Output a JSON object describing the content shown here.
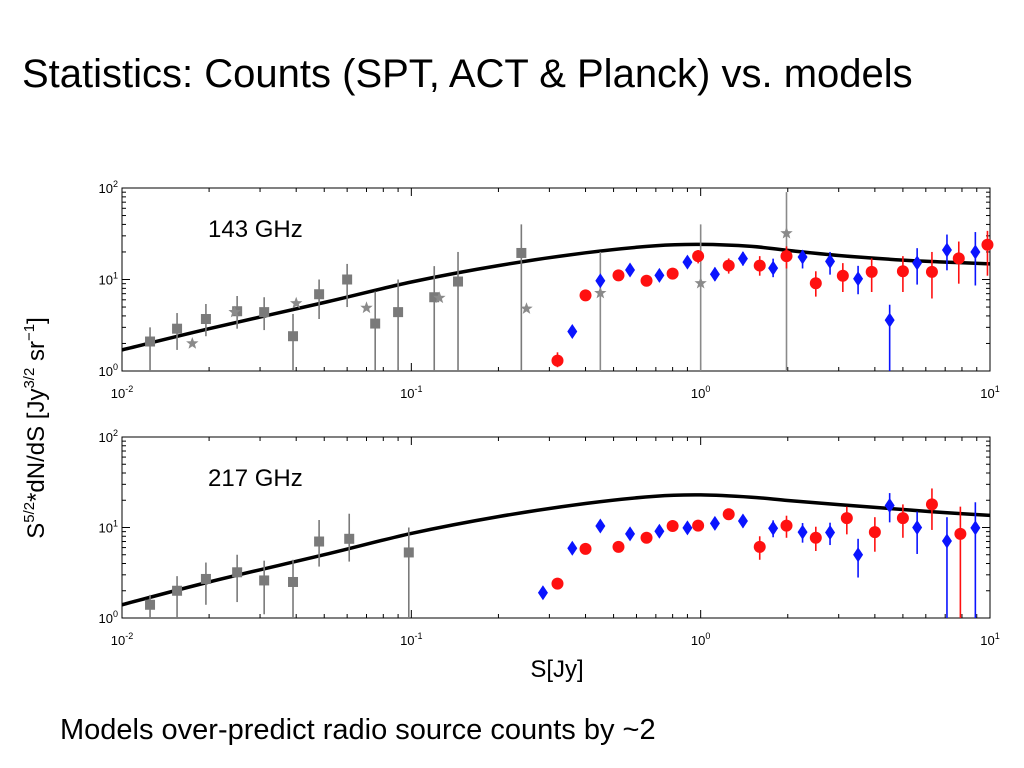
{
  "slide": {
    "title": "Statistics: Counts (SPT, ACT & Planck) vs. models",
    "caption": "Models over-predict radio source counts by ~2"
  },
  "chart_data": {
    "type": "scatter",
    "xscale": "log",
    "yscale": "log",
    "xlabel": "S[Jy]",
    "ylabel": "S5/2*dN/dS [Jy3/2 sr-1]",
    "xlim": [
      0.01,
      10
    ],
    "ylim": [
      1,
      100
    ],
    "x_ticks": [
      {
        "base": "10",
        "exp": "-2"
      },
      {
        "base": "10",
        "exp": "-1"
      },
      {
        "base": "10",
        "exp": "0"
      },
      {
        "base": "10",
        "exp": "1"
      }
    ],
    "y_ticks": [
      {
        "base": "10",
        "exp": "0"
      },
      {
        "base": "10",
        "exp": "1"
      },
      {
        "base": "10",
        "exp": "2"
      }
    ],
    "colors": {
      "gray_square": "#7a7a7a",
      "gray_star": "#8a8a8a",
      "red_circle": "#ff1010",
      "blue_diamond": "#0a14ff",
      "model": "#000000"
    },
    "panels": [
      {
        "label": "143 GHz",
        "model": {
          "x": [
            0.01,
            0.02,
            0.05,
            0.1,
            0.2,
            0.4,
            0.7,
            1.0,
            1.5,
            2.0,
            3.0,
            5.0,
            7.0,
            10.0
          ],
          "y": [
            1.7,
            2.9,
            5.6,
            9.4,
            14.2,
            19.6,
            23.4,
            24.2,
            23.0,
            20.8,
            18.3,
            16.3,
            15.5,
            14.8
          ]
        },
        "series": [
          {
            "marker": "square",
            "color": "gray_square",
            "x": [
              0.0125,
              0.0155,
              0.0195,
              0.025,
              0.031,
              0.039,
              0.048,
              0.06,
              0.075,
              0.09,
              0.12,
              0.145,
              0.24
            ],
            "y": [
              2.1,
              2.9,
              3.7,
              4.5,
              4.4,
              2.4,
              6.9,
              10,
              3.3,
              4.4,
              6.4,
              9.5,
              19.5
            ],
            "ylo": [
              1,
              1.7,
              2.4,
              2.9,
              2.8,
              1,
              3.7,
              5,
              1,
              1,
              1,
              1,
              1
            ],
            "yhi": [
              3,
              4.3,
              5.4,
              6.6,
              6.4,
              4.2,
              10,
              14.8,
              7.4,
              10,
              14,
              20,
              40
            ]
          },
          {
            "marker": "star",
            "color": "gray_star",
            "x": [
              0.0175,
              0.0245,
              0.04,
              0.07,
              0.125,
              0.25,
              0.45,
              1.0,
              1.98
            ],
            "y": [
              2.0,
              4.4,
              5.5,
              4.9,
              6.3,
              4.8,
              7.1,
              9.1,
              32
            ],
            "ylo": [
              2.0,
              4.4,
              5.5,
              4.9,
              6.3,
              4.8,
              1,
              1,
              1
            ],
            "yhi": [
              2.0,
              4.4,
              5.5,
              4.9,
              6.3,
              4.8,
              20,
              40,
              90
            ]
          },
          {
            "marker": "circle",
            "color": "red_circle",
            "x": [
              0.32,
              0.4,
              0.52,
              0.65,
              0.8,
              0.98,
              1.25,
              1.6,
              1.98,
              2.5,
              3.1,
              3.9,
              5.0,
              6.3,
              7.8,
              9.8
            ],
            "y": [
              1.3,
              6.7,
              11.1,
              9.7,
              11.6,
              18,
              14.2,
              14.2,
              18,
              9.1,
              11,
              12.1,
              12.3,
              12.1,
              17,
              24
            ],
            "ylo": [
              1.1,
              5.9,
              9.9,
              8.8,
              10.3,
              15,
              11.6,
              11,
              13.2,
              6.5,
              7.3,
              7.3,
              7.3,
              6.2,
              9,
              11
            ],
            "yhi": [
              1.6,
              7.6,
              12.7,
              11,
              13,
              21,
              17,
              18,
              23,
              12.3,
              15.1,
              17,
              18,
              20,
              26,
              34
            ]
          },
          {
            "marker": "diamond",
            "color": "blue_diamond",
            "x": [
              0.36,
              0.45,
              0.57,
              0.72,
              0.9,
              1.12,
              1.4,
              1.78,
              2.25,
              2.8,
              3.5,
              4.5,
              5.6,
              7.1,
              8.9
            ],
            "y": [
              2.7,
              9.7,
              12.7,
              11.1,
              15.5,
              11.4,
              16.9,
              13.3,
              17.6,
              15.8,
              10.2,
              3.6,
              15.2,
              21,
              20
            ],
            "ylo": [
              2.5,
              8.6,
              11.3,
              9.8,
              13.3,
              9.7,
              14.2,
              10.6,
              13.2,
              11.3,
              6.9,
              1,
              8.8,
              12.6,
              8.6
            ],
            "yhi": [
              3.0,
              11,
              14.3,
              12.5,
              17.9,
              13.5,
              20,
              16.9,
              21,
              20,
              14.1,
              5.3,
              22,
              31,
              33
            ]
          }
        ]
      },
      {
        "label": "217 GHz",
        "model": {
          "x": [
            0.01,
            0.02,
            0.05,
            0.1,
            0.2,
            0.4,
            0.7,
            1.0,
            1.5,
            2.0,
            3.0,
            5.0,
            7.0,
            10.0
          ],
          "y": [
            1.4,
            2.5,
            5.0,
            8.6,
            13.2,
            18.4,
            22.2,
            22.9,
            21.6,
            19.9,
            17.9,
            15.8,
            14.6,
            13.6
          ]
        },
        "series": [
          {
            "marker": "square",
            "color": "gray_square",
            "x": [
              0.0125,
              0.0155,
              0.0195,
              0.025,
              0.031,
              0.039,
              0.048,
              0.061,
              0.098
            ],
            "y": [
              1.4,
              2.0,
              2.7,
              3.2,
              2.6,
              2.5,
              7.0,
              7.5,
              5.3
            ],
            "ylo": [
              1,
              1,
              1.4,
              1.5,
              1.1,
              1,
              3.7,
              4.2,
              1
            ],
            "yhi": [
              1.8,
              2.9,
              4.1,
              5.0,
              4.3,
              4.4,
              12.1,
              14.2,
              10
            ]
          },
          {
            "marker": "circle",
            "color": "red_circle",
            "x": [
              0.32,
              0.4,
              0.52,
              0.65,
              0.8,
              0.98,
              1.25,
              1.6,
              1.98,
              2.5,
              3.2,
              4.0,
              5.0,
              6.3,
              7.9
            ],
            "y": [
              2.4,
              5.8,
              6.1,
              7.7,
              10.4,
              10.5,
              14,
              6.1,
              10.5,
              7.7,
              12.7,
              8.9,
              12.7,
              18,
              8.5
            ],
            "ylo": [
              2.2,
              5.3,
              5.6,
              7.0,
              9.4,
              9.2,
              12.1,
              4.4,
              7.7,
              5.5,
              8.4,
              5.4,
              7.7,
              9.4,
              1
            ],
            "yhi": [
              2.6,
              6.4,
              6.8,
              8.4,
              11.6,
              12,
              16,
              8.0,
              13.5,
              10.2,
              17,
              13,
              18,
              27,
              17
            ]
          },
          {
            "marker": "diamond",
            "color": "blue_diamond",
            "x": [
              0.285,
              0.36,
              0.45,
              0.57,
              0.72,
              0.9,
              1.12,
              1.4,
              1.78,
              2.25,
              2.8,
              3.5,
              4.5,
              5.6,
              7.1,
              8.9
            ],
            "y": [
              1.9,
              5.9,
              10.4,
              8.5,
              9.1,
              9.9,
              11.1,
              11.8,
              9.8,
              8.9,
              8.8,
              5.0,
              17.5,
              10.0,
              7.1,
              9.9
            ],
            "ylo": [
              1.8,
              5.4,
              9.6,
              7.8,
              8.2,
              8.7,
              9.8,
              10,
              7.8,
              6.8,
              6.4,
              2.8,
              11.4,
              5.1,
              1,
              1
            ],
            "yhi": [
              2.1,
              6.5,
              11.3,
              9.3,
              10,
              11.2,
              12.6,
              13.8,
              12,
              11.2,
              11.3,
              7.5,
              24,
              15,
              13,
              19
            ]
          }
        ]
      }
    ]
  }
}
